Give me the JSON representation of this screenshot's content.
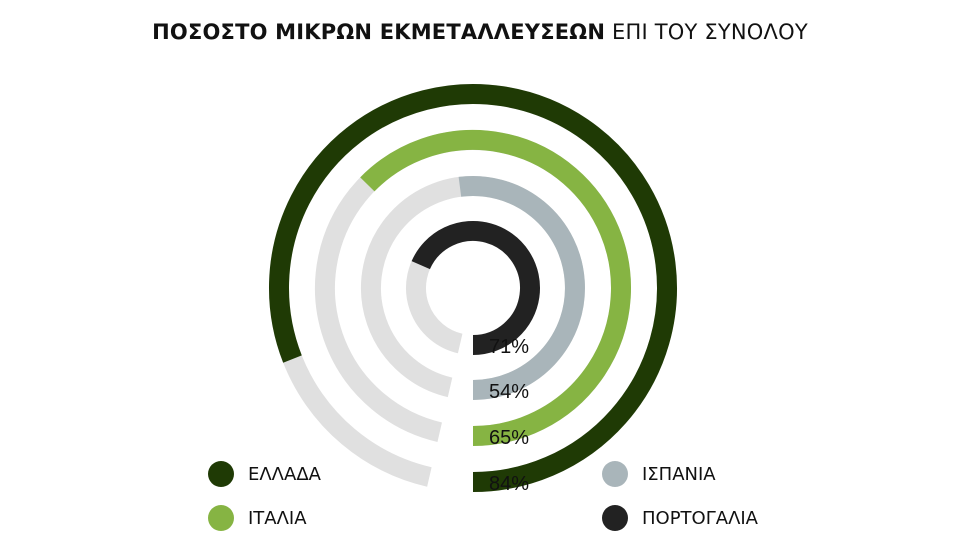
{
  "chart_data": {
    "type": "radial-bar",
    "title_bold": "ΠΟΣΟΣΤΟ ΜΙΚΡΩΝ ΕΚΜΕΤΑΛΛΕΥΣΕΩΝ",
    "title_rest": "ΕΠΙ ΤΟΥ ΣΥΝΟΛΟΥ",
    "max": 100,
    "track_color": "#e0e0e0",
    "series": [
      {
        "name": "ΕΛΛΑΔΑ",
        "value": 84,
        "label": "84%",
        "color": "#1f3a05"
      },
      {
        "name": "ΙΤΑΛΙΑ",
        "value": 65,
        "label": "65%",
        "color": "#86b443"
      },
      {
        "name": "ΙΣΠΑΝΙΑ",
        "value": 54,
        "label": "54%",
        "color": "#a9b5ba"
      },
      {
        "name": "ΠΟΡΤΟΓΑΛΙΑ",
        "value": 71,
        "label": "71%",
        "color": "#222222"
      }
    ]
  }
}
